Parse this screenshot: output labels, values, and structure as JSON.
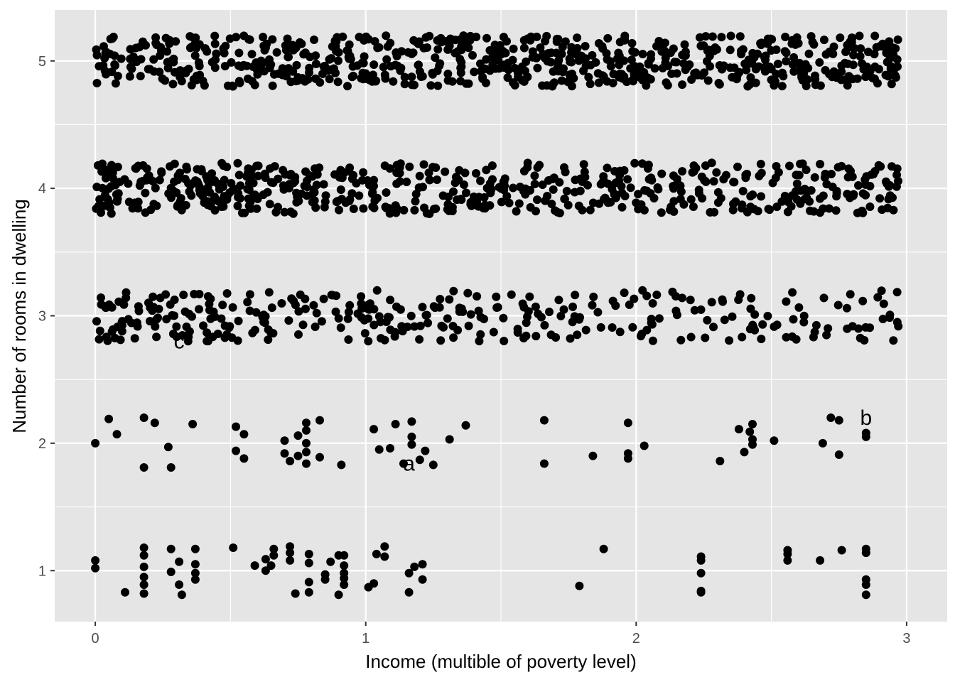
{
  "chart_data": {
    "type": "scatter",
    "xlabel": "Income (multible of poverty level)",
    "ylabel": "Number of rooms in dwelling",
    "xlim": [
      -0.15,
      3.15
    ],
    "ylim": [
      0.6,
      5.4
    ],
    "x_ticks": [
      0,
      1,
      2,
      3
    ],
    "y_ticks": [
      1,
      2,
      3,
      4,
      5
    ],
    "x_tick_labels": [
      "0",
      "1",
      "2",
      "3"
    ],
    "y_tick_labels": [
      "1",
      "2",
      "3",
      "4",
      "5"
    ],
    "grid": true,
    "panel_background": "#e5e5e5",
    "grid_color": "#ffffff",
    "point_color": "#000000",
    "jitter": "points jittered vertically around each integer room count",
    "rows": [
      {
        "rooms": 5,
        "x_range": [
          0,
          2.97
        ],
        "density": "dense",
        "approx_n": 700
      },
      {
        "rooms": 4,
        "x_range": [
          0,
          2.97
        ],
        "density": "dense",
        "approx_n": 600
      },
      {
        "rooms": 3,
        "x_range": [
          0,
          2.97
        ],
        "density": "medium",
        "approx_n": 330
      },
      {
        "rooms": 2,
        "points": [
          [
            0.0,
            2.0
          ],
          [
            0.05,
            2.19
          ],
          [
            0.08,
            2.07
          ],
          [
            0.18,
            2.2
          ],
          [
            0.18,
            1.81
          ],
          [
            0.22,
            2.16
          ],
          [
            0.27,
            1.97
          ],
          [
            0.28,
            1.81
          ],
          [
            0.36,
            2.15
          ],
          [
            0.52,
            2.13
          ],
          [
            0.52,
            1.94
          ],
          [
            0.55,
            2.07
          ],
          [
            0.55,
            1.88
          ],
          [
            0.7,
            2.02
          ],
          [
            0.7,
            1.92
          ],
          [
            0.72,
            1.86
          ],
          [
            0.75,
            2.06
          ],
          [
            0.75,
            1.9
          ],
          [
            0.78,
            2.16
          ],
          [
            0.78,
            2.1
          ],
          [
            0.78,
            2.0
          ],
          [
            0.78,
            1.93
          ],
          [
            0.78,
            1.84
          ],
          [
            0.83,
            2.18
          ],
          [
            0.83,
            1.89
          ],
          [
            0.91,
            1.83
          ],
          [
            1.03,
            2.11
          ],
          [
            1.05,
            1.95
          ],
          [
            1.09,
            1.96
          ],
          [
            1.11,
            2.15
          ],
          [
            1.14,
            1.84
          ],
          [
            1.17,
            2.17
          ],
          [
            1.17,
            2.05
          ],
          [
            1.17,
            1.99
          ],
          [
            1.2,
            1.87
          ],
          [
            1.22,
            1.94
          ],
          [
            1.25,
            1.83
          ],
          [
            1.31,
            2.03
          ],
          [
            1.37,
            2.14
          ],
          [
            1.66,
            2.18
          ],
          [
            1.66,
            1.84
          ],
          [
            1.84,
            1.9
          ],
          [
            1.97,
            2.16
          ],
          [
            1.97,
            1.92
          ],
          [
            1.97,
            1.88
          ],
          [
            2.03,
            1.98
          ],
          [
            2.31,
            1.86
          ],
          [
            2.38,
            2.11
          ],
          [
            2.4,
            1.93
          ],
          [
            2.42,
            2.09
          ],
          [
            2.43,
            2.15
          ],
          [
            2.43,
            2.03
          ],
          [
            2.43,
            1.99
          ],
          [
            2.51,
            2.02
          ],
          [
            2.69,
            2.0
          ],
          [
            2.72,
            2.2
          ],
          [
            2.75,
            2.18
          ],
          [
            2.75,
            1.91
          ],
          [
            2.85,
            2.08
          ],
          [
            2.85,
            2.05
          ]
        ]
      },
      {
        "rooms": 1,
        "points": [
          [
            0.0,
            1.08
          ],
          [
            0.0,
            1.02
          ],
          [
            0.11,
            0.83
          ],
          [
            0.18,
            1.18
          ],
          [
            0.18,
            1.12
          ],
          [
            0.18,
            1.03
          ],
          [
            0.18,
            0.95
          ],
          [
            0.18,
            0.89
          ],
          [
            0.18,
            0.82
          ],
          [
            0.28,
            1.17
          ],
          [
            0.28,
            0.99
          ],
          [
            0.31,
            1.07
          ],
          [
            0.31,
            0.89
          ],
          [
            0.32,
            0.81
          ],
          [
            0.37,
            1.17
          ],
          [
            0.37,
            1.05
          ],
          [
            0.37,
            0.98
          ],
          [
            0.37,
            0.93
          ],
          [
            0.51,
            1.18
          ],
          [
            0.59,
            1.04
          ],
          [
            0.63,
            1.09
          ],
          [
            0.63,
            1.0
          ],
          [
            0.65,
            1.04
          ],
          [
            0.66,
            1.17
          ],
          [
            0.66,
            1.12
          ],
          [
            0.72,
            1.19
          ],
          [
            0.72,
            1.14
          ],
          [
            0.72,
            1.08
          ],
          [
            0.74,
            0.82
          ],
          [
            0.79,
            1.13
          ],
          [
            0.79,
            1.06
          ],
          [
            0.79,
            0.91
          ],
          [
            0.79,
            0.83
          ],
          [
            0.85,
            0.97
          ],
          [
            0.85,
            0.93
          ],
          [
            0.87,
            1.07
          ],
          [
            0.9,
            1.12
          ],
          [
            0.9,
            0.81
          ],
          [
            0.92,
            1.12
          ],
          [
            0.92,
            1.04
          ],
          [
            0.92,
            0.98
          ],
          [
            0.92,
            0.94
          ],
          [
            0.92,
            0.89
          ],
          [
            1.01,
            0.87
          ],
          [
            1.03,
            0.9
          ],
          [
            1.04,
            1.13
          ],
          [
            1.07,
            1.19
          ],
          [
            1.07,
            1.11
          ],
          [
            1.16,
            0.98
          ],
          [
            1.16,
            0.83
          ],
          [
            1.18,
            1.03
          ],
          [
            1.21,
            1.05
          ],
          [
            1.21,
            0.93
          ],
          [
            1.79,
            0.88
          ],
          [
            1.88,
            1.17
          ],
          [
            2.24,
            1.11
          ],
          [
            2.24,
            1.08
          ],
          [
            2.24,
            0.98
          ],
          [
            2.24,
            0.84
          ],
          [
            2.24,
            0.83
          ],
          [
            2.56,
            1.16
          ],
          [
            2.56,
            1.13
          ],
          [
            2.56,
            1.08
          ],
          [
            2.68,
            1.08
          ],
          [
            2.76,
            1.16
          ],
          [
            2.85,
            1.17
          ],
          [
            2.85,
            1.14
          ],
          [
            2.85,
            0.93
          ],
          [
            2.85,
            0.89
          ],
          [
            2.85,
            0.81
          ]
        ]
      }
    ],
    "annotations": [
      {
        "label": "c",
        "x": 0.31,
        "y": 2.8
      },
      {
        "label": "a",
        "x": 1.16,
        "y": 1.84
      },
      {
        "label": "b",
        "x": 2.85,
        "y": 2.2
      }
    ]
  }
}
